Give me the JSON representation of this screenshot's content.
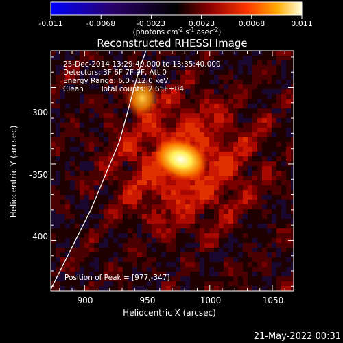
{
  "chart_data": {
    "type": "heatmap",
    "title": "Reconstructed RHESSI Image",
    "xlabel": "Heliocentric X (arcsec)",
    "ylabel": "Heliocentric Y (arcsec)",
    "xlim": [
      873,
      1067
    ],
    "ylim": [
      -433,
      -276
    ],
    "x_ticks": [
      900,
      950,
      1000,
      1050
    ],
    "y_ticks": [
      -300,
      -350,
      -400
    ],
    "colorbar": {
      "range": [
        -0.011,
        0.011
      ],
      "ticks": [
        "-0.011",
        "-0.0068",
        "-0.0023",
        "0.0023",
        "0.0068",
        "0.011"
      ],
      "label_main": "(photons cm",
      "label_exp1": "-2",
      "label_mid1": " s",
      "label_exp2": "-1",
      "label_mid2": " asec",
      "label_exp3": "-2",
      "label_end": ")"
    },
    "annotations": {
      "line1": "25-Dec-2014 13:29:40.000 to 13:35:40.000",
      "line2": "Detectors: 3F 6F 7F 9F, Att 0",
      "line3": "Energy Range: 6.0 - 12.0 keV",
      "line4_a": "Clean",
      "line4_b": "Total counts: 2.65E+04",
      "peak": "Position of Peak = [977,-347]"
    },
    "sources": [
      {
        "x": 977,
        "y": -347,
        "amplitude": 0.011
      },
      {
        "x": 946,
        "y": -307,
        "amplitude": 0.0068
      }
    ],
    "limb_curve": [
      [
        873,
        -432
      ],
      [
        905,
        -380
      ],
      [
        928,
        -335
      ],
      [
        943,
        -290
      ],
      [
        949,
        -276
      ]
    ],
    "footer_date": "21-May-2022 00:31"
  }
}
